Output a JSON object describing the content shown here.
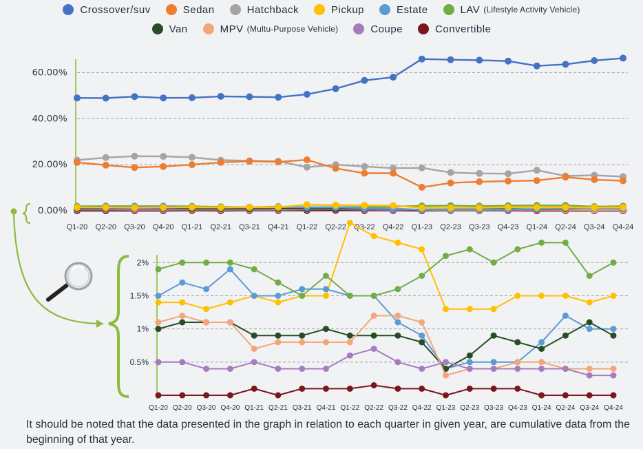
{
  "legend": {
    "items": [
      {
        "label": "Crossover/suv",
        "note": "",
        "color": "#4472c4"
      },
      {
        "label": "Sedan",
        "note": "",
        "color": "#ed7d31"
      },
      {
        "label": "Hatchback",
        "note": "",
        "color": "#a5a5a5"
      },
      {
        "label": "Pickup",
        "note": "",
        "color": "#ffc000"
      },
      {
        "label": "Estate",
        "note": "",
        "color": "#5b9bd5"
      },
      {
        "label": "LAV",
        "note": "(Lifestyle Activity Vehicle)",
        "color": "#70ad47"
      },
      {
        "label": "Van",
        "note": "",
        "color": "#264d26"
      },
      {
        "label": "MPV",
        "note": "(Multu-Purpose Vehicle)",
        "color": "#f4a57a"
      },
      {
        "label": "Coupe",
        "note": "",
        "color": "#a77bbd"
      },
      {
        "label": "Convertible",
        "note": "",
        "color": "#7b1520"
      }
    ]
  },
  "footnote": "It should be noted that the data presented in the graph in relation to each quarter in given year, are cumulative data from the beginning of that year.",
  "chart_data": [
    {
      "type": "line",
      "title": "",
      "xlabel": "",
      "ylabel": "",
      "categories": [
        "Q1-20",
        "Q2-20",
        "Q3-20",
        "Q4-20",
        "Q1-21",
        "Q2-21",
        "Q3-21",
        "Q4-21",
        "Q1-22",
        "Q2-22",
        "Q3-22",
        "Q4-22",
        "Q1-23",
        "Q2-23",
        "Q3-23",
        "Q4-23",
        "Q1-24",
        "Q2-24",
        "Q3-24",
        "Q4-24"
      ],
      "y_ticks": [
        "0.00%",
        "20.00%",
        "40.00%",
        "60.00%"
      ],
      "ylim": [
        0,
        70
      ],
      "grid": "horizontal dashed",
      "series": [
        {
          "name": "Crossover/suv",
          "values": [
            49,
            48.9,
            49.6,
            49,
            49.1,
            49.7,
            49.5,
            49.3,
            50.6,
            53,
            56.6,
            58,
            65.9,
            65.6,
            65.4,
            65,
            62.9,
            63.6,
            65.2,
            66.3
          ]
        },
        {
          "name": "Sedan",
          "values": [
            21,
            19.8,
            18.8,
            19.2,
            20,
            21,
            21.5,
            21.2,
            22.1,
            18.4,
            16.3,
            16.3,
            10.2,
            12.1,
            12.6,
            12.9,
            13.1,
            14.6,
            13.5,
            13
          ]
        },
        {
          "name": "Hatchback",
          "values": [
            22,
            23.1,
            23.7,
            23.6,
            23.2,
            22,
            21.7,
            21.5,
            18.9,
            20,
            19.2,
            18.5,
            18.6,
            16.6,
            16.2,
            16.1,
            17.6,
            15.1,
            15.4,
            14.8
          ]
        },
        {
          "name": "Pickup",
          "values": [
            1.4,
            1.4,
            1.3,
            1.4,
            1.5,
            1.4,
            1.5,
            1.5,
            2.6,
            2.4,
            2.3,
            2.2,
            1.3,
            1.3,
            1.3,
            1.5,
            1.5,
            1.5,
            1.4,
            1.5
          ]
        },
        {
          "name": "Estate",
          "values": [
            1.5,
            1.7,
            1.6,
            1.9,
            1.5,
            1.5,
            1.6,
            1.6,
            1.5,
            1.5,
            1.1,
            0.9,
            0.4,
            0.5,
            0.5,
            0.5,
            0.8,
            1.2,
            1,
            1
          ]
        },
        {
          "name": "LAV",
          "values": [
            1.9,
            2,
            2,
            2,
            1.9,
            1.7,
            1.5,
            1.8,
            1.5,
            1.5,
            1.6,
            1.8,
            2.1,
            2.2,
            2,
            2.2,
            2.3,
            2.3,
            1.8,
            2
          ]
        },
        {
          "name": "Van",
          "values": [
            1,
            1.1,
            1.1,
            1.1,
            0.9,
            0.9,
            0.9,
            1,
            0.9,
            0.9,
            0.9,
            0.8,
            0.4,
            0.6,
            0.9,
            0.8,
            0.7,
            0.9,
            1.1,
            0.9
          ]
        },
        {
          "name": "MPV",
          "values": [
            1.1,
            1.2,
            1.1,
            1.1,
            0.7,
            0.8,
            0.8,
            0.8,
            0.8,
            1.2,
            1.2,
            1.1,
            0.3,
            0.4,
            0.4,
            0.5,
            0.5,
            0.4,
            0.4,
            0.4
          ]
        },
        {
          "name": "Coupe",
          "values": [
            0.5,
            0.5,
            0.4,
            0.4,
            0.5,
            0.4,
            0.4,
            0.4,
            0.6,
            0.7,
            0.5,
            0.4,
            0.5,
            0.4,
            0.4,
            0.4,
            0.4,
            0.4,
            0.3,
            0.3
          ]
        },
        {
          "name": "Convertible",
          "values": [
            0,
            0,
            0,
            0,
            0.1,
            0,
            0.1,
            0.1,
            0.1,
            0.15,
            0.1,
            0.1,
            0,
            0.1,
            0.1,
            0.1,
            0,
            0,
            0,
            0
          ]
        }
      ]
    },
    {
      "type": "line",
      "title": "",
      "xlabel": "",
      "ylabel": "",
      "note": "zoomed view of the series near 0.00%",
      "categories": [
        "Q1-20",
        "Q2-20",
        "Q3-20",
        "Q4-20",
        "Q1-21",
        "Q2-21",
        "Q3-21",
        "Q4-21",
        "Q1-22",
        "Q2-22",
        "Q3-22",
        "Q4-22",
        "Q1-23",
        "Q2-23",
        "Q3-23",
        "Q4-23",
        "Q1-24",
        "Q2-24",
        "Q3-24",
        "Q4-24"
      ],
      "y_ticks": [
        "0.5%",
        "1%",
        "1.5%",
        "2%"
      ],
      "y_tick_values": [
        0.5,
        1,
        1.5,
        2
      ],
      "ylim": [
        0,
        2.2
      ],
      "grid": "horizontal dashed",
      "series": [
        {
          "name": "Pickup",
          "values": [
            1.4,
            1.4,
            1.3,
            1.4,
            1.5,
            1.4,
            1.5,
            1.5,
            2.6,
            2.4,
            2.3,
            2.2,
            1.3,
            1.3,
            1.3,
            1.5,
            1.5,
            1.5,
            1.4,
            1.5
          ]
        },
        {
          "name": "Estate",
          "values": [
            1.5,
            1.7,
            1.6,
            1.9,
            1.5,
            1.5,
            1.6,
            1.6,
            1.5,
            1.5,
            1.1,
            0.9,
            0.4,
            0.5,
            0.5,
            0.5,
            0.8,
            1.2,
            1,
            1
          ]
        },
        {
          "name": "LAV",
          "values": [
            1.9,
            2,
            2,
            2,
            1.9,
            1.7,
            1.5,
            1.8,
            1.5,
            1.5,
            1.6,
            1.8,
            2.1,
            2.2,
            2,
            2.2,
            2.3,
            2.3,
            1.8,
            2
          ]
        },
        {
          "name": "Van",
          "values": [
            1,
            1.1,
            1.1,
            1.1,
            0.9,
            0.9,
            0.9,
            1,
            0.9,
            0.9,
            0.9,
            0.8,
            0.4,
            0.6,
            0.9,
            0.8,
            0.7,
            0.9,
            1.1,
            0.9
          ]
        },
        {
          "name": "MPV",
          "values": [
            1.1,
            1.2,
            1.1,
            1.1,
            0.7,
            0.8,
            0.8,
            0.8,
            0.8,
            1.2,
            1.2,
            1.1,
            0.3,
            0.4,
            0.4,
            0.5,
            0.5,
            0.4,
            0.4,
            0.4
          ]
        },
        {
          "name": "Coupe",
          "values": [
            0.5,
            0.5,
            0.4,
            0.4,
            0.5,
            0.4,
            0.4,
            0.4,
            0.6,
            0.7,
            0.5,
            0.4,
            0.5,
            0.4,
            0.4,
            0.4,
            0.4,
            0.4,
            0.3,
            0.3
          ]
        },
        {
          "name": "Convertible",
          "values": [
            0,
            0,
            0,
            0,
            0.1,
            0,
            0.1,
            0.1,
            0.1,
            0.15,
            0.1,
            0.1,
            0,
            0.1,
            0.1,
            0.1,
            0,
            0,
            0,
            0
          ]
        }
      ]
    }
  ],
  "decor": {
    "accent_color": "#8dba3f",
    "magnifier_icon": "magnifier-icon"
  }
}
